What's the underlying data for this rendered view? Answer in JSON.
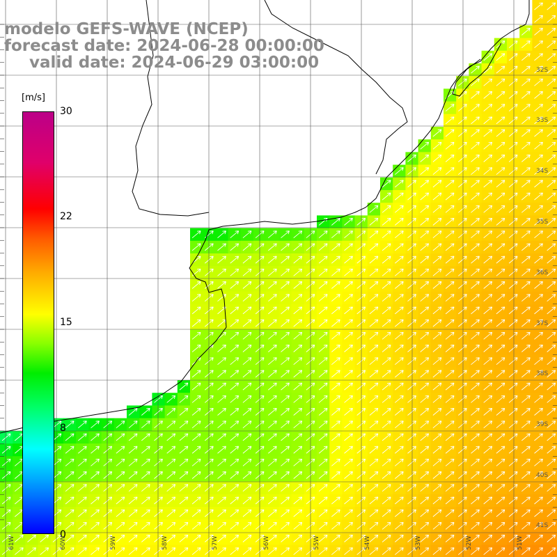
{
  "title": {
    "line1": "modelo GEFS-WAVE (NCEP)",
    "line2": "forecast date: 2024-06-28 00:00:00",
    "line3": "valid date: 2024-06-29 03:00:00"
  },
  "colorbar": {
    "unit": "[m/s]",
    "ticks": [
      "30",
      "22",
      "15",
      "8",
      "0"
    ],
    "tick_values": [
      30,
      22,
      15,
      8,
      0
    ],
    "colors": [
      "#0000ff",
      "#00aaff",
      "#00ffff",
      "#00ff66",
      "#00ee00",
      "#88ff00",
      "#ffff00",
      "#ffaa00",
      "#ff5a00",
      "#ff0000",
      "#e0006a",
      "#bb0088"
    ]
  },
  "axes": {
    "lon_labels": [
      "61W",
      "60W",
      "59W",
      "58W",
      "57W",
      "56W",
      "55W",
      "54W",
      "53W",
      "52W",
      "51W"
    ],
    "lat_labels": [
      "32S",
      "33S",
      "34S",
      "35S",
      "36S",
      "37S",
      "38S",
      "39S",
      "40S",
      "41S"
    ]
  },
  "map": {
    "grid": true,
    "vector_color": "#ffffff",
    "coast_color": "#000000",
    "land_color": "#ffffff"
  }
}
